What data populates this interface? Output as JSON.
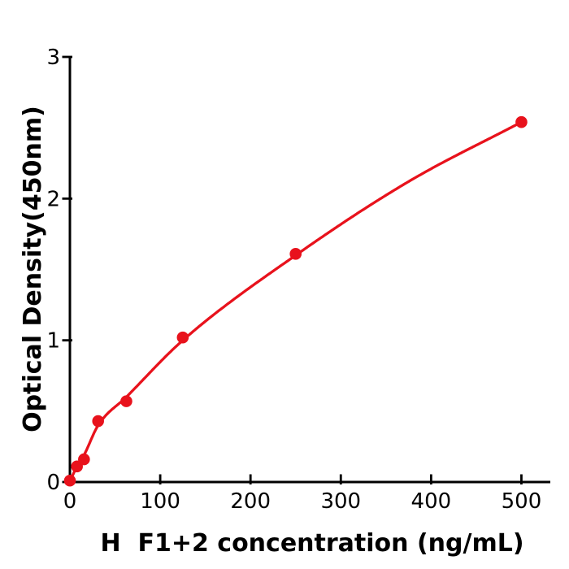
{
  "figure": {
    "background": "#ffffff"
  },
  "chart_data": {
    "type": "scatter",
    "title": "",
    "xlabel": "H  F1+2 concentration (ng/mL)",
    "ylabel": "Optical Density(450nm)",
    "x": [
      0,
      7.8,
      15.6,
      31.25,
      62.5,
      125,
      250,
      500
    ],
    "y": [
      0.01,
      0.11,
      0.16,
      0.43,
      0.57,
      1.02,
      1.61,
      2.54
    ],
    "fit_curve": {
      "x": [
        0,
        7.8,
        15.6,
        31.25,
        62.5,
        125,
        250,
        375,
        500
      ],
      "y": [
        0.005,
        0.11,
        0.19,
        0.4,
        0.6,
        1.0,
        1.6,
        2.12,
        2.54
      ]
    },
    "xlim": [
      0,
      532
    ],
    "ylim": [
      0,
      3
    ],
    "xticks": [
      0,
      100,
      200,
      300,
      400,
      500
    ],
    "yticks": [
      0,
      1,
      2,
      3
    ],
    "grid": false,
    "legend": null,
    "marker": "circle",
    "marker_color": "#e8121c",
    "line_color": "#e8121c",
    "axis_color": "#000000",
    "text_color": "#000000"
  }
}
